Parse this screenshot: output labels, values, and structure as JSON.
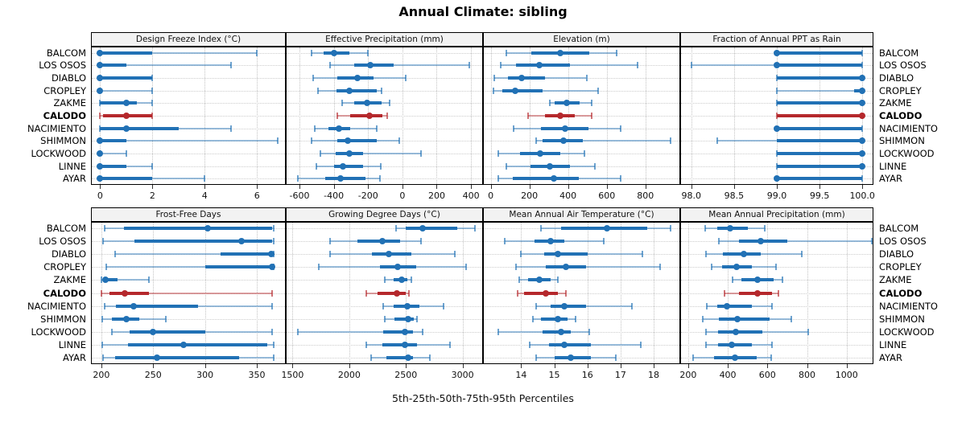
{
  "title": "Annual Climate: sibling",
  "caption": "5th-25th-50th-75th-95th Percentiles",
  "colors": {
    "series_blue": "#2171b5",
    "highlight_red": "#b5282c",
    "strip_background": "#f2f2f2",
    "grid": "#c3c3c3"
  },
  "series_labels": [
    "BALCOM",
    "LOS OSOS",
    "DIABLO",
    "CROPLEY",
    "ZAKME",
    "CALODO",
    "NACIMIENTO",
    "SHIMMON",
    "LOCKWOOD",
    "LINNE",
    "AYAR"
  ],
  "highlighted_series": "CALODO",
  "percentiles_shown": [
    5,
    25,
    50,
    75,
    95
  ],
  "chart_data": [
    {
      "type": "dotplot-percentiles",
      "id": "design-freeze-index",
      "title": "Design Freeze Index (°C)",
      "xlim": [
        -0.35,
        7.1
      ],
      "ticks": [
        0,
        2,
        4,
        6
      ],
      "tick_labels": [
        "0",
        "2",
        "4",
        "6"
      ],
      "values": [
        [
          0,
          0,
          0,
          2,
          6
        ],
        [
          0,
          0,
          0,
          1,
          5
        ],
        [
          0,
          0,
          0,
          2,
          2
        ],
        [
          0,
          0,
          0,
          0,
          2
        ],
        [
          0,
          0,
          1,
          1.4,
          2
        ],
        [
          0,
          0.1,
          1,
          2,
          2
        ],
        [
          0,
          0,
          1,
          3,
          5
        ],
        [
          0,
          0,
          0,
          1,
          6.8
        ],
        [
          0,
          0,
          0,
          0,
          1
        ],
        [
          0,
          0,
          0,
          1,
          2
        ],
        [
          0,
          0,
          0,
          2,
          4
        ]
      ]
    },
    {
      "type": "dotplot-percentiles",
      "id": "effective-precipitation",
      "title": "Effective Precipitation (mm)",
      "xlim": [
        -680,
        470
      ],
      "ticks": [
        -600,
        -400,
        -200,
        0,
        200,
        400
      ],
      "tick_labels": [
        "-600",
        "-400",
        "-200",
        "0",
        "200",
        "400"
      ],
      "values": [
        [
          -530,
          -460,
          -400,
          -310,
          -200
        ],
        [
          -420,
          -280,
          -185,
          -50,
          390
        ],
        [
          -520,
          -380,
          -260,
          -170,
          20
        ],
        [
          -490,
          -385,
          -310,
          -150,
          -120
        ],
        [
          -350,
          -280,
          -205,
          -120,
          -75
        ],
        [
          -380,
          -305,
          -190,
          -115,
          -90
        ],
        [
          -510,
          -430,
          -370,
          -305,
          -150
        ],
        [
          -530,
          -380,
          -320,
          -150,
          -20
        ],
        [
          -480,
          -390,
          -310,
          -230,
          110
        ],
        [
          -500,
          -400,
          -345,
          -230,
          -125
        ],
        [
          -610,
          -450,
          -360,
          -215,
          -130
        ]
      ]
    },
    {
      "type": "dotplot-percentiles",
      "id": "elevation",
      "title": "Elevation (m)",
      "xlim": [
        -40,
        980
      ],
      "ticks": [
        0,
        200,
        400,
        600,
        800
      ],
      "tick_labels": [
        "0",
        "200",
        "400",
        "600",
        "800"
      ],
      "values": [
        [
          80,
          210,
          360,
          510,
          650
        ],
        [
          50,
          130,
          250,
          410,
          760
        ],
        [
          20,
          90,
          160,
          280,
          495
        ],
        [
          15,
          60,
          125,
          270,
          555
        ],
        [
          305,
          330,
          395,
          460,
          520
        ],
        [
          195,
          280,
          360,
          435,
          520
        ],
        [
          120,
          260,
          385,
          505,
          670
        ],
        [
          235,
          270,
          375,
          475,
          930
        ],
        [
          40,
          150,
          255,
          360,
          485
        ],
        [
          80,
          205,
          305,
          410,
          540
        ],
        [
          40,
          115,
          325,
          455,
          670
        ]
      ]
    },
    {
      "type": "dotplot-percentiles",
      "id": "fraction-of-annual-ppt-as-rain",
      "title": "Fraction of Annual PPT as Rain",
      "xlim": [
        97.87,
        100.13
      ],
      "ticks": [
        98.0,
        98.5,
        99.0,
        99.5,
        100.0
      ],
      "tick_labels": [
        "98.0",
        "98.5",
        "99.0",
        "99.5",
        "100.0"
      ],
      "values": [
        [
          99,
          99,
          99,
          100,
          100
        ],
        [
          98,
          99,
          99,
          100,
          100
        ],
        [
          99,
          99,
          100,
          100,
          100
        ],
        [
          99,
          99.9,
          100,
          100,
          100
        ],
        [
          99,
          99,
          100,
          100,
          100
        ],
        [
          99,
          99,
          100,
          100,
          100
        ],
        [
          99,
          99,
          99,
          100,
          100
        ],
        [
          98.3,
          99,
          100,
          100,
          100
        ],
        [
          99,
          99,
          100,
          100,
          100
        ],
        [
          99,
          99,
          100,
          100,
          100
        ],
        [
          99,
          99,
          99,
          100,
          100
        ]
      ]
    },
    {
      "type": "dotplot-percentiles",
      "id": "frost-free-days",
      "title": "Frost-Free Days",
      "xlim": [
        190,
        378
      ],
      "ticks": [
        200,
        250,
        300,
        350
      ],
      "tick_labels": [
        "200",
        "250",
        "300",
        "350"
      ],
      "values": [
        [
          203,
          222,
          303,
          365,
          366
        ],
        [
          202,
          232,
          335,
          365,
          366
        ],
        [
          213,
          315,
          364,
          366,
          366
        ],
        [
          205,
          300,
          365,
          366,
          366
        ],
        [
          200,
          202,
          204,
          216,
          246
        ],
        [
          200,
          208,
          223,
          246,
          365
        ],
        [
          203,
          214,
          231,
          293,
          365
        ],
        [
          201,
          210,
          224,
          237,
          262
        ],
        [
          210,
          227,
          250,
          300,
          365
        ],
        [
          201,
          226,
          279,
          360,
          366
        ],
        [
          202,
          213,
          254,
          333,
          366
        ]
      ]
    },
    {
      "type": "dotplot-percentiles",
      "id": "growing-degree-days",
      "title": "Growing Degree Days (°C)",
      "xlim": [
        1440,
        3180
      ],
      "ticks": [
        1500,
        2000,
        2500,
        3000
      ],
      "tick_labels": [
        "1500",
        "2000",
        "2500",
        "3000"
      ],
      "values": [
        [
          2410,
          2500,
          2650,
          2950,
          3110
        ],
        [
          1830,
          2070,
          2290,
          2450,
          2630
        ],
        [
          1830,
          2200,
          2350,
          2550,
          2930
        ],
        [
          1730,
          2270,
          2430,
          2590,
          3030
        ],
        [
          2310,
          2390,
          2460,
          2510,
          2550
        ],
        [
          2150,
          2250,
          2420,
          2500,
          2530
        ],
        [
          2300,
          2390,
          2510,
          2620,
          2830
        ],
        [
          2310,
          2400,
          2520,
          2570,
          2600
        ],
        [
          1550,
          2300,
          2490,
          2560,
          2650
        ],
        [
          2150,
          2290,
          2490,
          2600,
          2890
        ],
        [
          2190,
          2330,
          2520,
          2560,
          2710
        ]
      ]
    },
    {
      "type": "dotplot-percentiles",
      "id": "mean-annual-air-temperature",
      "title": "Mean Annual Air Temperature (°C)",
      "xlim": [
        12.85,
        18.8
      ],
      "ticks": [
        14,
        15,
        16,
        17,
        18
      ],
      "tick_labels": [
        "14",
        "15",
        "16",
        "17",
        "18"
      ],
      "values": [
        [
          14.6,
          15.2,
          16.6,
          17.8,
          18.5
        ],
        [
          13.5,
          14.4,
          14.9,
          15.3,
          16.5
        ],
        [
          14.0,
          14.7,
          15.1,
          16.0,
          17.65
        ],
        [
          13.85,
          14.75,
          15.35,
          15.95,
          18.2
        ],
        [
          13.95,
          14.2,
          14.55,
          14.9,
          15.1
        ],
        [
          13.9,
          14.1,
          14.75,
          15.1,
          15.35
        ],
        [
          14.45,
          14.9,
          15.3,
          15.95,
          17.35
        ],
        [
          14.35,
          14.6,
          15.1,
          15.4,
          15.65
        ],
        [
          13.3,
          14.65,
          15.2,
          15.5,
          16.05
        ],
        [
          14.25,
          14.85,
          15.3,
          16.1,
          17.6
        ],
        [
          14.45,
          15.0,
          15.5,
          16.1,
          16.85
        ]
      ]
    },
    {
      "type": "dotplot-percentiles",
      "id": "mean-annual-precipitation",
      "title": "Mean Annual Precipitation (mm)",
      "xlim": [
        160,
        1135
      ],
      "ticks": [
        200,
        400,
        600,
        800,
        1000
      ],
      "tick_labels": [
        "200",
        "400",
        "600",
        "800",
        "1000"
      ],
      "values": [
        [
          285,
          345,
          410,
          500,
          585
        ],
        [
          355,
          455,
          565,
          700,
          1125
        ],
        [
          290,
          375,
          480,
          565,
          775
        ],
        [
          320,
          370,
          445,
          520,
          645
        ],
        [
          425,
          470,
          550,
          630,
          675
        ],
        [
          385,
          455,
          550,
          625,
          655
        ],
        [
          295,
          345,
          395,
          520,
          625
        ],
        [
          275,
          355,
          450,
          610,
          720
        ],
        [
          290,
          350,
          440,
          575,
          805
        ],
        [
          290,
          350,
          420,
          520,
          625
        ],
        [
          225,
          330,
          435,
          545,
          620
        ]
      ]
    }
  ]
}
